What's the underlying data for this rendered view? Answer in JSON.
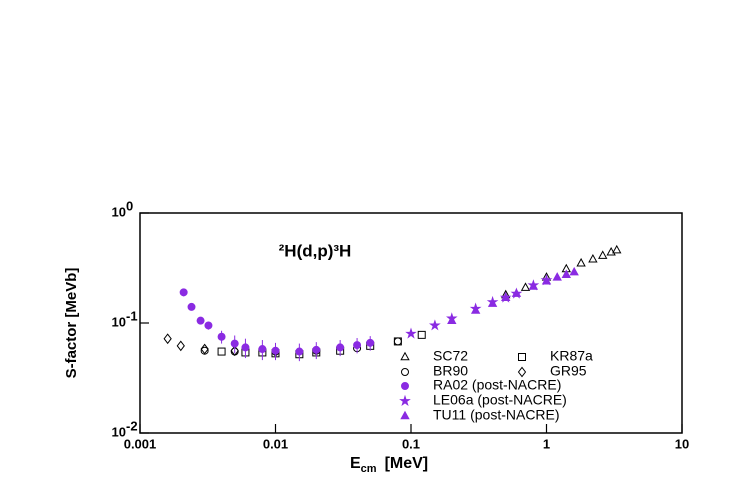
{
  "chart_data": {
    "type": "scatter",
    "title": "²H(d,p)³H",
    "x_label": {
      "main": "E",
      "sub": "cm",
      "unit": "[MeV]"
    },
    "y_label": "S-factor [MeVb]",
    "log_x": true,
    "log_y": true,
    "xlim": [
      0.001,
      10
    ],
    "ylim": [
      0.01,
      1
    ],
    "xticks": [
      0.001,
      0.01,
      0.1,
      1,
      10
    ],
    "yticks": [
      {
        "value": 0.01,
        "label": "10",
        "exponent": "-2"
      },
      {
        "value": 0.1,
        "label": "10",
        "exponent": "-1"
      },
      {
        "value": 1,
        "label": "10",
        "exponent": "0"
      }
    ],
    "series": [
      {
        "name": "SC72",
        "marker": "triangle-open",
        "color": "#000000",
        "x": [
          0.5,
          0.7,
          1.0,
          1.4,
          1.8,
          2.2,
          2.6,
          3.0,
          3.3
        ],
        "values": [
          0.18,
          0.21,
          0.26,
          0.31,
          0.35,
          0.38,
          0.41,
          0.44,
          0.46
        ]
      },
      {
        "name": "KR87a",
        "marker": "square-open",
        "color": "#000000",
        "x": [
          0.004,
          0.006,
          0.008,
          0.01,
          0.015,
          0.02,
          0.03,
          0.05,
          0.08,
          0.12
        ],
        "values": [
          0.055,
          0.054,
          0.054,
          0.053,
          0.052,
          0.054,
          0.056,
          0.062,
          0.068,
          0.078
        ]
      },
      {
        "name": "BR90",
        "marker": "circle-open",
        "color": "#000000",
        "x": [
          0.003,
          0.005,
          0.01,
          0.02,
          0.04,
          0.08
        ],
        "values": [
          0.056,
          0.055,
          0.055,
          0.056,
          0.059,
          0.068
        ]
      },
      {
        "name": "GR95",
        "marker": "diamond-open",
        "color": "#000000",
        "x": [
          0.0016,
          0.002,
          0.003,
          0.005,
          0.01
        ],
        "values": [
          0.072,
          0.062,
          0.058,
          0.056,
          0.055
        ]
      },
      {
        "name": "RA02 (post-NACRE)",
        "marker": "circle",
        "color": "#8a2be2",
        "x": [
          0.0021,
          0.0024,
          0.0028,
          0.0032,
          0.004,
          0.005,
          0.006,
          0.008,
          0.01,
          0.015,
          0.02,
          0.03,
          0.04,
          0.05
        ],
        "values": [
          0.19,
          0.14,
          0.105,
          0.095,
          0.075,
          0.065,
          0.06,
          0.058,
          0.056,
          0.055,
          0.057,
          0.06,
          0.063,
          0.066
        ],
        "errors": [
          0.015,
          0.01,
          0.008,
          0.008,
          0.01,
          0.012,
          0.012,
          0.012,
          0.01,
          0.01,
          0.01,
          0.01,
          0.01,
          0.01
        ]
      },
      {
        "name": "LE06a (post-NACRE)",
        "marker": "star",
        "color": "#8a2be2",
        "x": [
          0.1,
          0.15,
          0.2,
          0.3,
          0.4,
          0.5,
          0.6,
          0.8,
          1.0
        ],
        "values": [
          0.08,
          0.095,
          0.11,
          0.135,
          0.155,
          0.17,
          0.185,
          0.22,
          0.245
        ]
      },
      {
        "name": "TU11 (post-NACRE)",
        "marker": "triangle",
        "color": "#8a2be2",
        "x": [
          0.2,
          0.3,
          0.4,
          0.5,
          0.6,
          0.8,
          1.0,
          1.2,
          1.4,
          1.6
        ],
        "values": [
          0.105,
          0.13,
          0.15,
          0.17,
          0.185,
          0.215,
          0.24,
          0.26,
          0.275,
          0.29
        ]
      }
    ]
  }
}
